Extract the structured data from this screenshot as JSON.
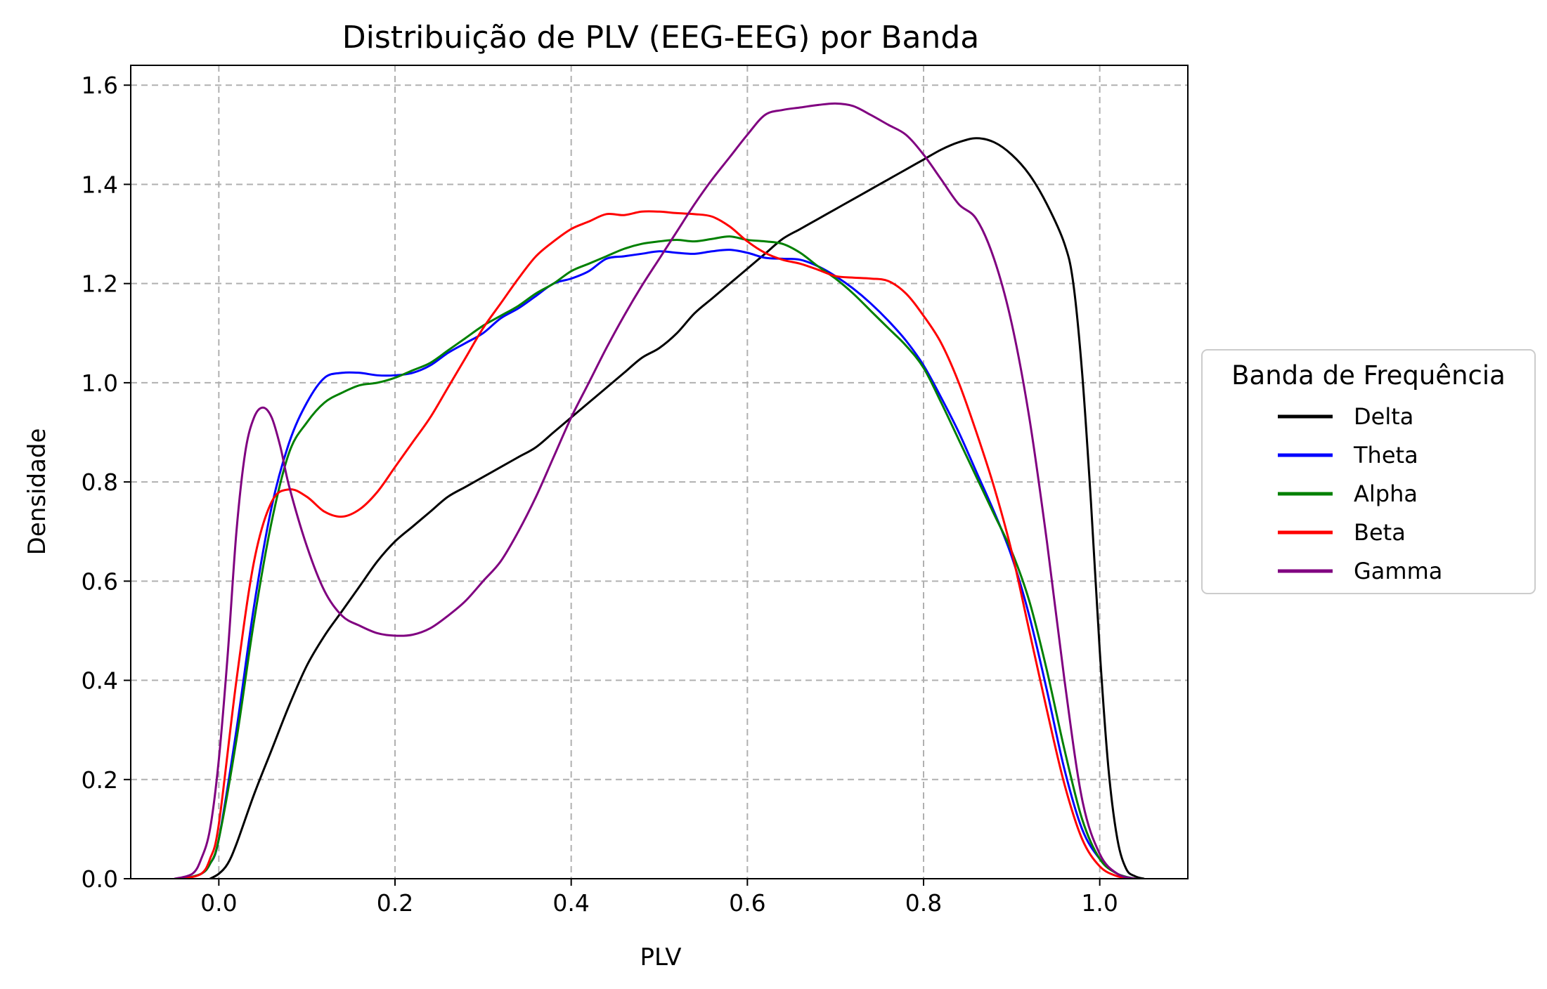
{
  "chart_data": {
    "type": "line",
    "title": "Distribuição de PLV (EEG-EEG) por Banda",
    "xlabel": "PLV",
    "ylabel": "Densidade",
    "xlim": [
      -0.1,
      1.1
    ],
    "ylim": [
      0.0,
      1.64
    ],
    "xticks": [
      0.0,
      0.2,
      0.4,
      0.6,
      0.8,
      1.0
    ],
    "xtick_labels": [
      "0.0",
      "0.2",
      "0.4",
      "0.6",
      "0.8",
      "1.0"
    ],
    "yticks": [
      0.0,
      0.2,
      0.4,
      0.6,
      0.8,
      1.0,
      1.2,
      1.4,
      1.6
    ],
    "ytick_labels": [
      "0.0",
      "0.2",
      "0.4",
      "0.6",
      "0.8",
      "1.0",
      "1.2",
      "1.4",
      "1.6"
    ],
    "grid": true,
    "legend": {
      "title": "Banda de Frequência",
      "placement": "outside-right"
    },
    "series": [
      {
        "name": "Delta",
        "color": "#000000",
        "points": [
          [
            -0.01,
            0.0
          ],
          [
            0.0,
            0.01
          ],
          [
            0.01,
            0.03
          ],
          [
            0.02,
            0.07
          ],
          [
            0.04,
            0.17
          ],
          [
            0.06,
            0.26
          ],
          [
            0.08,
            0.35
          ],
          [
            0.1,
            0.43
          ],
          [
            0.12,
            0.49
          ],
          [
            0.14,
            0.54
          ],
          [
            0.16,
            0.59
          ],
          [
            0.18,
            0.64
          ],
          [
            0.2,
            0.68
          ],
          [
            0.22,
            0.71
          ],
          [
            0.24,
            0.74
          ],
          [
            0.26,
            0.77
          ],
          [
            0.28,
            0.79
          ],
          [
            0.3,
            0.81
          ],
          [
            0.32,
            0.83
          ],
          [
            0.34,
            0.85
          ],
          [
            0.36,
            0.87
          ],
          [
            0.38,
            0.9
          ],
          [
            0.4,
            0.93
          ],
          [
            0.42,
            0.96
          ],
          [
            0.44,
            0.99
          ],
          [
            0.46,
            1.02
          ],
          [
            0.48,
            1.05
          ],
          [
            0.5,
            1.07
          ],
          [
            0.52,
            1.1
          ],
          [
            0.54,
            1.14
          ],
          [
            0.56,
            1.17
          ],
          [
            0.58,
            1.2
          ],
          [
            0.6,
            1.23
          ],
          [
            0.62,
            1.26
          ],
          [
            0.64,
            1.29
          ],
          [
            0.66,
            1.31
          ],
          [
            0.68,
            1.33
          ],
          [
            0.7,
            1.35
          ],
          [
            0.72,
            1.37
          ],
          [
            0.74,
            1.39
          ],
          [
            0.76,
            1.41
          ],
          [
            0.78,
            1.43
          ],
          [
            0.8,
            1.45
          ],
          [
            0.82,
            1.47
          ],
          [
            0.84,
            1.485
          ],
          [
            0.86,
            1.493
          ],
          [
            0.88,
            1.485
          ],
          [
            0.9,
            1.46
          ],
          [
            0.92,
            1.42
          ],
          [
            0.94,
            1.36
          ],
          [
            0.96,
            1.28
          ],
          [
            0.97,
            1.2
          ],
          [
            0.98,
            1.02
          ],
          [
            0.99,
            0.76
          ],
          [
            1.0,
            0.46
          ],
          [
            1.01,
            0.22
          ],
          [
            1.02,
            0.08
          ],
          [
            1.03,
            0.02
          ],
          [
            1.04,
            0.005
          ],
          [
            1.05,
            0.0
          ]
        ]
      },
      {
        "name": "Theta",
        "color": "#0000ff",
        "points": [
          [
            -0.04,
            0.0
          ],
          [
            -0.02,
            0.01
          ],
          [
            -0.01,
            0.03
          ],
          [
            0.0,
            0.08
          ],
          [
            0.02,
            0.3
          ],
          [
            0.04,
            0.55
          ],
          [
            0.06,
            0.75
          ],
          [
            0.08,
            0.88
          ],
          [
            0.1,
            0.96
          ],
          [
            0.12,
            1.01
          ],
          [
            0.14,
            1.02
          ],
          [
            0.16,
            1.02
          ],
          [
            0.18,
            1.015
          ],
          [
            0.2,
            1.015
          ],
          [
            0.22,
            1.02
          ],
          [
            0.24,
            1.035
          ],
          [
            0.26,
            1.06
          ],
          [
            0.28,
            1.08
          ],
          [
            0.3,
            1.1
          ],
          [
            0.32,
            1.13
          ],
          [
            0.34,
            1.15
          ],
          [
            0.36,
            1.175
          ],
          [
            0.38,
            1.2
          ],
          [
            0.4,
            1.21
          ],
          [
            0.42,
            1.225
          ],
          [
            0.44,
            1.25
          ],
          [
            0.46,
            1.255
          ],
          [
            0.48,
            1.26
          ],
          [
            0.5,
            1.265
          ],
          [
            0.52,
            1.262
          ],
          [
            0.54,
            1.26
          ],
          [
            0.56,
            1.265
          ],
          [
            0.58,
            1.268
          ],
          [
            0.6,
            1.262
          ],
          [
            0.62,
            1.252
          ],
          [
            0.64,
            1.25
          ],
          [
            0.66,
            1.248
          ],
          [
            0.68,
            1.235
          ],
          [
            0.7,
            1.215
          ],
          [
            0.72,
            1.19
          ],
          [
            0.74,
            1.16
          ],
          [
            0.76,
            1.125
          ],
          [
            0.78,
            1.085
          ],
          [
            0.8,
            1.035
          ],
          [
            0.82,
            0.97
          ],
          [
            0.84,
            0.9
          ],
          [
            0.86,
            0.82
          ],
          [
            0.88,
            0.74
          ],
          [
            0.9,
            0.65
          ],
          [
            0.92,
            0.53
          ],
          [
            0.94,
            0.38
          ],
          [
            0.96,
            0.22
          ],
          [
            0.98,
            0.1
          ],
          [
            1.0,
            0.04
          ],
          [
            1.02,
            0.01
          ],
          [
            1.04,
            0.0
          ]
        ]
      },
      {
        "name": "Alpha",
        "color": "#008000",
        "points": [
          [
            -0.04,
            0.0
          ],
          [
            -0.02,
            0.01
          ],
          [
            -0.01,
            0.03
          ],
          [
            0.0,
            0.08
          ],
          [
            0.02,
            0.28
          ],
          [
            0.04,
            0.52
          ],
          [
            0.06,
            0.72
          ],
          [
            0.08,
            0.86
          ],
          [
            0.1,
            0.92
          ],
          [
            0.12,
            0.96
          ],
          [
            0.14,
            0.98
          ],
          [
            0.16,
            0.995
          ],
          [
            0.18,
            1.0
          ],
          [
            0.2,
            1.01
          ],
          [
            0.22,
            1.025
          ],
          [
            0.24,
            1.04
          ],
          [
            0.26,
            1.065
          ],
          [
            0.28,
            1.09
          ],
          [
            0.3,
            1.115
          ],
          [
            0.32,
            1.135
          ],
          [
            0.34,
            1.155
          ],
          [
            0.36,
            1.18
          ],
          [
            0.38,
            1.2
          ],
          [
            0.4,
            1.225
          ],
          [
            0.42,
            1.24
          ],
          [
            0.44,
            1.255
          ],
          [
            0.46,
            1.27
          ],
          [
            0.48,
            1.28
          ],
          [
            0.5,
            1.285
          ],
          [
            0.52,
            1.288
          ],
          [
            0.54,
            1.285
          ],
          [
            0.56,
            1.29
          ],
          [
            0.58,
            1.295
          ],
          [
            0.6,
            1.288
          ],
          [
            0.62,
            1.285
          ],
          [
            0.64,
            1.28
          ],
          [
            0.66,
            1.262
          ],
          [
            0.68,
            1.235
          ],
          [
            0.7,
            1.21
          ],
          [
            0.72,
            1.18
          ],
          [
            0.74,
            1.145
          ],
          [
            0.76,
            1.11
          ],
          [
            0.78,
            1.075
          ],
          [
            0.8,
            1.03
          ],
          [
            0.82,
            0.96
          ],
          [
            0.84,
            0.885
          ],
          [
            0.86,
            0.81
          ],
          [
            0.88,
            0.735
          ],
          [
            0.9,
            0.66
          ],
          [
            0.92,
            0.56
          ],
          [
            0.94,
            0.42
          ],
          [
            0.96,
            0.26
          ],
          [
            0.98,
            0.12
          ],
          [
            1.0,
            0.04
          ],
          [
            1.02,
            0.01
          ],
          [
            1.04,
            0.0
          ]
        ]
      },
      {
        "name": "Beta",
        "color": "#ff0000",
        "points": [
          [
            -0.04,
            0.0
          ],
          [
            -0.02,
            0.01
          ],
          [
            -0.01,
            0.04
          ],
          [
            0.0,
            0.11
          ],
          [
            0.02,
            0.4
          ],
          [
            0.04,
            0.64
          ],
          [
            0.06,
            0.76
          ],
          [
            0.08,
            0.785
          ],
          [
            0.1,
            0.77
          ],
          [
            0.12,
            0.74
          ],
          [
            0.14,
            0.73
          ],
          [
            0.16,
            0.745
          ],
          [
            0.18,
            0.78
          ],
          [
            0.2,
            0.83
          ],
          [
            0.22,
            0.88
          ],
          [
            0.24,
            0.93
          ],
          [
            0.26,
            0.99
          ],
          [
            0.28,
            1.05
          ],
          [
            0.3,
            1.11
          ],
          [
            0.32,
            1.16
          ],
          [
            0.34,
            1.21
          ],
          [
            0.36,
            1.255
          ],
          [
            0.38,
            1.285
          ],
          [
            0.4,
            1.31
          ],
          [
            0.42,
            1.325
          ],
          [
            0.44,
            1.34
          ],
          [
            0.46,
            1.338
          ],
          [
            0.48,
            1.345
          ],
          [
            0.5,
            1.345
          ],
          [
            0.52,
            1.342
          ],
          [
            0.54,
            1.34
          ],
          [
            0.56,
            1.335
          ],
          [
            0.58,
            1.315
          ],
          [
            0.6,
            1.285
          ],
          [
            0.62,
            1.262
          ],
          [
            0.64,
            1.248
          ],
          [
            0.66,
            1.24
          ],
          [
            0.68,
            1.228
          ],
          [
            0.7,
            1.215
          ],
          [
            0.72,
            1.212
          ],
          [
            0.74,
            1.21
          ],
          [
            0.76,
            1.205
          ],
          [
            0.78,
            1.18
          ],
          [
            0.8,
            1.135
          ],
          [
            0.82,
            1.08
          ],
          [
            0.84,
            1.0
          ],
          [
            0.86,
            0.9
          ],
          [
            0.88,
            0.79
          ],
          [
            0.9,
            0.66
          ],
          [
            0.92,
            0.5
          ],
          [
            0.94,
            0.34
          ],
          [
            0.96,
            0.19
          ],
          [
            0.98,
            0.08
          ],
          [
            1.0,
            0.025
          ],
          [
            1.02,
            0.005
          ],
          [
            1.04,
            0.0
          ]
        ]
      },
      {
        "name": "Gamma",
        "color": "#800080",
        "points": [
          [
            -0.05,
            0.0
          ],
          [
            -0.03,
            0.01
          ],
          [
            -0.02,
            0.04
          ],
          [
            -0.01,
            0.1
          ],
          [
            0.0,
            0.24
          ],
          [
            0.01,
            0.45
          ],
          [
            0.02,
            0.7
          ],
          [
            0.03,
            0.86
          ],
          [
            0.04,
            0.93
          ],
          [
            0.05,
            0.95
          ],
          [
            0.06,
            0.93
          ],
          [
            0.07,
            0.87
          ],
          [
            0.08,
            0.79
          ],
          [
            0.1,
            0.67
          ],
          [
            0.12,
            0.58
          ],
          [
            0.14,
            0.53
          ],
          [
            0.16,
            0.51
          ],
          [
            0.18,
            0.495
          ],
          [
            0.2,
            0.49
          ],
          [
            0.22,
            0.492
          ],
          [
            0.24,
            0.505
          ],
          [
            0.26,
            0.53
          ],
          [
            0.28,
            0.56
          ],
          [
            0.3,
            0.6
          ],
          [
            0.32,
            0.64
          ],
          [
            0.34,
            0.7
          ],
          [
            0.36,
            0.77
          ],
          [
            0.38,
            0.85
          ],
          [
            0.4,
            0.93
          ],
          [
            0.42,
            1.0
          ],
          [
            0.44,
            1.07
          ],
          [
            0.46,
            1.135
          ],
          [
            0.48,
            1.195
          ],
          [
            0.5,
            1.25
          ],
          [
            0.52,
            1.305
          ],
          [
            0.54,
            1.36
          ],
          [
            0.56,
            1.41
          ],
          [
            0.58,
            1.455
          ],
          [
            0.6,
            1.5
          ],
          [
            0.62,
            1.54
          ],
          [
            0.64,
            1.55
          ],
          [
            0.66,
            1.555
          ],
          [
            0.68,
            1.56
          ],
          [
            0.7,
            1.563
          ],
          [
            0.72,
            1.558
          ],
          [
            0.74,
            1.54
          ],
          [
            0.76,
            1.52
          ],
          [
            0.78,
            1.5
          ],
          [
            0.8,
            1.46
          ],
          [
            0.82,
            1.41
          ],
          [
            0.84,
            1.36
          ],
          [
            0.86,
            1.33
          ],
          [
            0.88,
            1.25
          ],
          [
            0.9,
            1.12
          ],
          [
            0.92,
            0.93
          ],
          [
            0.94,
            0.68
          ],
          [
            0.96,
            0.4
          ],
          [
            0.98,
            0.16
          ],
          [
            1.0,
            0.05
          ],
          [
            1.02,
            0.01
          ],
          [
            1.04,
            0.0
          ]
        ]
      }
    ]
  }
}
